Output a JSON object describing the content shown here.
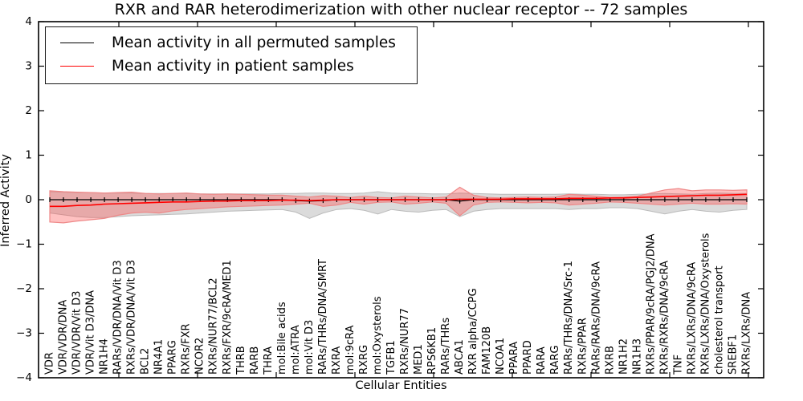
{
  "figure": {
    "title": "RXR and RAR heterodimerization with other nuclear receptor -- 72 samples",
    "xlabel": "Cellular Entities",
    "ylabel": "Inferred Activity"
  },
  "chart_data": {
    "type": "line",
    "title": "RXR and RAR heterodimerization with other nuclear receptor -- 72 samples",
    "xlabel": "Cellular Entities",
    "ylabel": "Inferred Activity",
    "ylim": [
      -4,
      4
    ],
    "yticks": [
      -4,
      -3,
      -2,
      -1,
      0,
      1,
      2,
      3,
      4
    ],
    "ytick_labels": [
      "−4",
      "−3",
      "−2",
      "−1",
      "0",
      "1",
      "2",
      "3",
      "4"
    ],
    "grid": false,
    "legend_position": "upper left",
    "background_color": "#ffffff",
    "categories": [
      "VDR",
      "VDR/VDR/DNA",
      "VDR/VDR/Vit D3",
      "VDR/Vit D3/DNA",
      "NR1H4",
      "RARs/VDR/DNA/Vit D3",
      "RXRs/VDR/DNA/Vit D3",
      "BCL2",
      "NR4A1",
      "PPARG",
      "RXRs/FXR",
      "NCOR2",
      "RXRs/NUR77/BCL2",
      "RXRs/FXR/9cRA/MED1",
      "THRB",
      "RARB",
      "THRA",
      "mol:Bile acids",
      "mol:ATRA",
      "mol:Vit D3",
      "RARs/THRs/DNA/SMRT",
      "RXRA",
      "mol:9cRA",
      "RXRG",
      "mol:Oxysterols",
      "TGFB1",
      "RXRs/NUR77",
      "MED1",
      "RPS6KB1",
      "RARs/THRs",
      "ABCA1",
      "RXR alpha/CCPG",
      "FAM120B",
      "NCOA1",
      "PPARA",
      "PPARD",
      "RARA",
      "RARG",
      "RARs/THRs/DNA/Src-1",
      "RXRs/PPAR",
      "RARs/RARs/DNA/9cRA",
      "RXRB",
      "NR1H2",
      "NR1H3",
      "RXRs/PPAR/9cRA/PGJ2/DNA",
      "RXRs/RXRs/DNA/9cRA",
      "TNF",
      "RXRs/LXRs/DNA/9cRA",
      "RXRs/LXRs/DNA/Oxysterols",
      "cholesterol transport",
      "SREBF1",
      "RXRs/LXRs/DNA"
    ],
    "series": [
      {
        "name": "Mean activity in all permuted samples",
        "line_color": "#000000",
        "band_color": "#999999",
        "band_opacity": 0.35,
        "band_edge_color": "#bbbbbb",
        "marker": "vertical-tick",
        "mean": [
          0,
          0,
          0,
          0,
          0,
          0,
          0,
          0,
          0,
          0,
          0,
          0,
          0,
          0,
          0,
          0,
          0,
          0,
          -0.02,
          -0.03,
          -0.02,
          0,
          0,
          0,
          0,
          0,
          0,
          0,
          0,
          0,
          -0.03,
          0,
          0,
          0,
          0,
          0,
          0,
          0,
          0,
          0,
          0,
          0,
          0,
          0,
          0,
          0,
          0,
          0,
          0,
          0,
          0,
          0
        ],
        "band_upper": [
          0.18,
          0.17,
          0.16,
          0.16,
          0.15,
          0.15,
          0.15,
          0.14,
          0.14,
          0.14,
          0.14,
          0.13,
          0.13,
          0.13,
          0.13,
          0.13,
          0.13,
          0.14,
          0.14,
          0.15,
          0.15,
          0.14,
          0.14,
          0.15,
          0.18,
          0.15,
          0.14,
          0.14,
          0.13,
          0.13,
          0.15,
          0.14,
          0.13,
          0.12,
          0.12,
          0.12,
          0.12,
          0.12,
          0.13,
          0.12,
          0.12,
          0.11,
          0.11,
          0.12,
          0.13,
          0.14,
          0.13,
          0.12,
          0.14,
          0.15,
          0.14,
          0.14
        ],
        "band_lower": [
          -0.3,
          -0.34,
          -0.38,
          -0.4,
          -0.4,
          -0.38,
          -0.36,
          -0.35,
          -0.34,
          -0.33,
          -0.32,
          -0.3,
          -0.28,
          -0.26,
          -0.25,
          -0.24,
          -0.23,
          -0.22,
          -0.28,
          -0.42,
          -0.3,
          -0.22,
          -0.2,
          -0.24,
          -0.32,
          -0.22,
          -0.26,
          -0.28,
          -0.24,
          -0.22,
          -0.38,
          -0.26,
          -0.22,
          -0.2,
          -0.2,
          -0.2,
          -0.2,
          -0.2,
          -0.22,
          -0.2,
          -0.2,
          -0.18,
          -0.18,
          -0.2,
          -0.26,
          -0.32,
          -0.26,
          -0.22,
          -0.26,
          -0.28,
          -0.24,
          -0.22
        ]
      },
      {
        "name": "Mean activity in patient samples",
        "line_color": "#ff0000",
        "band_color": "#ff4444",
        "band_opacity": 0.33,
        "band_edge_color": "#ee8888",
        "marker": "none",
        "mean": [
          -0.15,
          -0.15,
          -0.13,
          -0.12,
          -0.1,
          -0.09,
          -0.08,
          -0.07,
          -0.06,
          -0.05,
          -0.05,
          -0.04,
          -0.03,
          -0.03,
          -0.02,
          -0.02,
          -0.02,
          -0.01,
          -0.01,
          -0.02,
          -0.01,
          0,
          0,
          0,
          0,
          0,
          0,
          0,
          0,
          0,
          0.01,
          0.01,
          0.01,
          0.01,
          0.02,
          0.02,
          0.02,
          0.02,
          0.03,
          0.03,
          0.03,
          0.04,
          0.04,
          0.05,
          0.06,
          0.07,
          0.08,
          0.09,
          0.1,
          0.1,
          0.11,
          0.12
        ],
        "band_upper": [
          0.2,
          0.18,
          0.17,
          0.16,
          0.15,
          0.16,
          0.17,
          0.14,
          0.13,
          0.14,
          0.15,
          0.13,
          0.12,
          0.13,
          0.12,
          0.11,
          0.1,
          0.1,
          0.08,
          0.06,
          0.09,
          0.08,
          0.05,
          0.08,
          0.05,
          0.04,
          0.08,
          0.06,
          0.04,
          0.06,
          0.28,
          0.1,
          0.05,
          0.04,
          0.05,
          0.06,
          0.05,
          0.06,
          0.12,
          0.1,
          0.08,
          0.05,
          0.06,
          0.08,
          0.15,
          0.22,
          0.25,
          0.2,
          0.22,
          0.22,
          0.21,
          0.22
        ],
        "band_lower": [
          -0.5,
          -0.52,
          -0.48,
          -0.45,
          -0.42,
          -0.35,
          -0.3,
          -0.28,
          -0.3,
          -0.25,
          -0.22,
          -0.2,
          -0.18,
          -0.16,
          -0.15,
          -0.14,
          -0.13,
          -0.12,
          -0.1,
          -0.08,
          -0.15,
          -0.12,
          -0.06,
          -0.1,
          -0.06,
          -0.05,
          -0.1,
          -0.08,
          -0.05,
          -0.08,
          -0.36,
          -0.12,
          -0.06,
          -0.05,
          -0.06,
          -0.07,
          -0.06,
          -0.07,
          -0.12,
          -0.1,
          -0.08,
          -0.05,
          -0.06,
          -0.08,
          -0.1,
          -0.12,
          -0.1,
          -0.08,
          -0.1,
          -0.1,
          -0.09,
          -0.1
        ]
      }
    ]
  }
}
